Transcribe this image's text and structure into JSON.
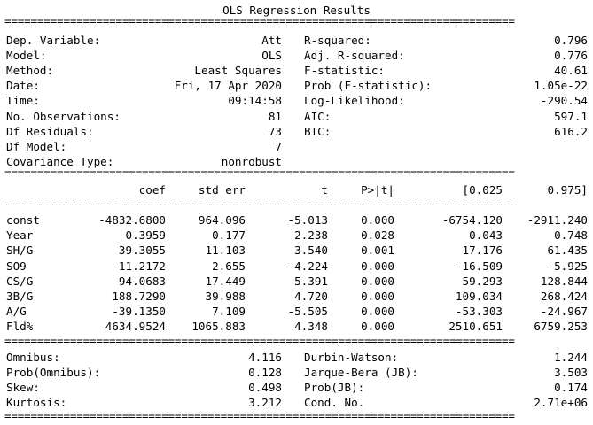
{
  "title": "OLS Regression Results",
  "rules": {
    "double": "==============================================================================",
    "single": "------------------------------------------------------------------------------"
  },
  "summary": [
    {
      "label": "Dep. Variable:",
      "value": "Att",
      "label2": "R-squared:",
      "value2": "0.796"
    },
    {
      "label": "Model:",
      "value": "OLS",
      "label2": "Adj. R-squared:",
      "value2": "0.776"
    },
    {
      "label": "Method:",
      "value": "Least Squares",
      "label2": "F-statistic:",
      "value2": "40.61"
    },
    {
      "label": "Date:",
      "value": "Fri, 17 Apr 2020",
      "label2": "Prob (F-statistic):",
      "value2": "1.05e-22"
    },
    {
      "label": "Time:",
      "value": "09:14:58",
      "label2": "Log-Likelihood:",
      "value2": "-290.54"
    },
    {
      "label": "No. Observations:",
      "value": "81",
      "label2": "AIC:",
      "value2": "597.1"
    },
    {
      "label": "Df Residuals:",
      "value": "73",
      "label2": "BIC:",
      "value2": "616.2"
    },
    {
      "label": "Df Model:",
      "value": "7",
      "label2": "",
      "value2": ""
    },
    {
      "label": "Covariance Type:",
      "value": "nonrobust",
      "label2": "",
      "value2": ""
    }
  ],
  "coef_table": {
    "headers": [
      "",
      "coef",
      "std err",
      "t",
      "P>|t|",
      "[0.025",
      "0.975]"
    ],
    "rows": [
      [
        "const",
        "-4832.6800",
        "964.096",
        "-5.013",
        "0.000",
        "-6754.120",
        "-2911.240"
      ],
      [
        "Year",
        "0.3959",
        "0.177",
        "2.238",
        "0.028",
        "0.043",
        "0.748"
      ],
      [
        "SH/G",
        "39.3055",
        "11.103",
        "3.540",
        "0.001",
        "17.176",
        "61.435"
      ],
      [
        "SO9",
        "-11.2172",
        "2.655",
        "-4.224",
        "0.000",
        "-16.509",
        "-5.925"
      ],
      [
        "CS/G",
        "94.0683",
        "17.449",
        "5.391",
        "0.000",
        "59.293",
        "128.844"
      ],
      [
        "3B/G",
        "188.7290",
        "39.988",
        "4.720",
        "0.000",
        "109.034",
        "268.424"
      ],
      [
        "A/G",
        "-39.1350",
        "7.109",
        "-5.505",
        "0.000",
        "-53.303",
        "-24.967"
      ],
      [
        "Fld%",
        "4634.9524",
        "1065.883",
        "4.348",
        "0.000",
        "2510.651",
        "6759.253"
      ]
    ]
  },
  "diagnostics": [
    {
      "label": "Omnibus:",
      "value": "4.116",
      "label2": "Durbin-Watson:",
      "value2": "1.244"
    },
    {
      "label": "Prob(Omnibus):",
      "value": "0.128",
      "label2": "Jarque-Bera (JB):",
      "value2": "3.503"
    },
    {
      "label": "Skew:",
      "value": "0.498",
      "label2": "Prob(JB):",
      "value2": "0.174"
    },
    {
      "label": "Kurtosis:",
      "value": "3.212",
      "label2": "Cond. No.",
      "value2": "2.71e+06"
    }
  ]
}
